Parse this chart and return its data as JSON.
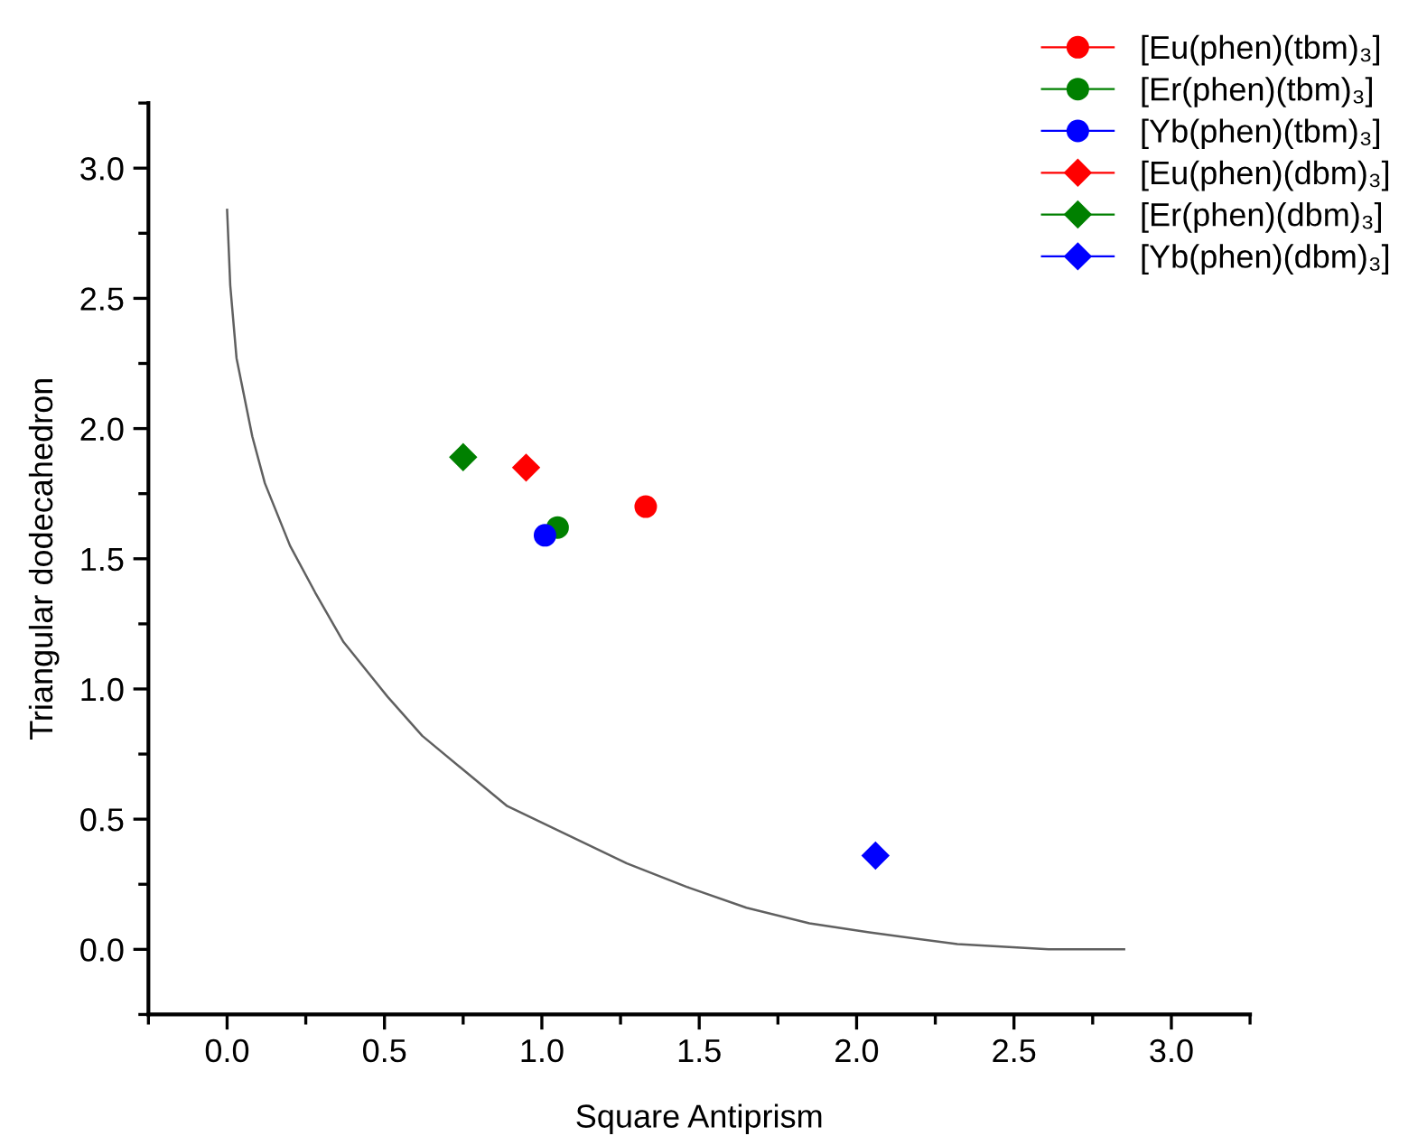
{
  "chart_data": {
    "type": "scatter",
    "xlabel": "Square Antiprism",
    "ylabel": "Triangular dodecahedron",
    "xlim": [
      -0.25,
      3.25
    ],
    "ylim": [
      -0.25,
      3.25
    ],
    "xticks": [
      {
        "value": -0.25,
        "label": null
      },
      {
        "value": 0,
        "label": "0.0"
      },
      {
        "value": 0.25,
        "label": null
      },
      0.5,
      {
        "value": 0.75,
        "label": null
      },
      {
        "value": 1,
        "label": "1.0"
      },
      {
        "value": 1.25,
        "label": null
      },
      1.5,
      {
        "value": 1.75,
        "label": null
      },
      {
        "value": 2,
        "label": "2.0"
      },
      {
        "value": 2.25,
        "label": null
      },
      2.5,
      {
        "value": 2.75,
        "label": null
      },
      {
        "value": 3,
        "label": "3.0"
      },
      {
        "value": 3.25,
        "label": null
      }
    ],
    "yticks": [
      {
        "value": -0.25,
        "label": null
      },
      {
        "value": 0,
        "label": "0.0"
      },
      {
        "value": 0.25,
        "label": null
      },
      0.5,
      {
        "value": 0.75,
        "label": null
      },
      {
        "value": 1,
        "label": "1.0"
      },
      {
        "value": 1.25,
        "label": null
      },
      1.5,
      {
        "value": 1.75,
        "label": null
      },
      {
        "value": 2,
        "label": "2.0"
      },
      {
        "value": 2.25,
        "label": null
      },
      2.5,
      {
        "value": 2.75,
        "label": null
      },
      {
        "value": 3,
        "label": "3.0"
      },
      {
        "value": 3.25,
        "label": null
      }
    ],
    "grid": false,
    "legend": "top right",
    "series": [
      {
        "type": "line",
        "color": "#606060",
        "marker": "none",
        "x": [
          0.0,
          0.01,
          0.03,
          0.08,
          0.12,
          0.2,
          0.28,
          0.37,
          0.51,
          0.62,
          0.76,
          0.89,
          1.08,
          1.27,
          1.46,
          1.65,
          1.85,
          2.04,
          2.32,
          2.61,
          2.85
        ],
        "values": [
          2.84,
          2.55,
          2.27,
          1.97,
          1.79,
          1.55,
          1.37,
          1.18,
          0.97,
          0.82,
          0.68,
          0.55,
          0.44,
          0.33,
          0.24,
          0.16,
          0.1,
          0.065,
          0.02,
          0.0,
          0.0
        ]
      },
      {
        "name": "[Eu(phen)(tbm)₃]",
        "color": "#ff0000",
        "marker": "circle",
        "x": [
          1.33
        ],
        "values": [
          1.7
        ]
      },
      {
        "name": "[Er(phen)(tbm)₃]",
        "color": "#008000",
        "marker": "circle",
        "x": [
          1.05
        ],
        "values": [
          1.62
        ]
      },
      {
        "name": "[Yb(phen)(tbm)₃]",
        "color": "#0000ff",
        "marker": "circle",
        "x": [
          1.01
        ],
        "values": [
          1.59
        ]
      },
      {
        "name": "[Eu(phen)(dbm)₃]",
        "color": "#ff0000",
        "marker": "diamond",
        "x": [
          0.95
        ],
        "values": [
          1.85
        ]
      },
      {
        "name": "[Er(phen)(dbm)₃]",
        "color": "#008000",
        "marker": "diamond",
        "x": [
          0.75
        ],
        "values": [
          1.89
        ]
      },
      {
        "name": "[Yb(phen)(dbm)₃]",
        "color": "#0000ff",
        "marker": "diamond",
        "x": [
          2.06
        ],
        "values": [
          0.36
        ]
      }
    ]
  }
}
